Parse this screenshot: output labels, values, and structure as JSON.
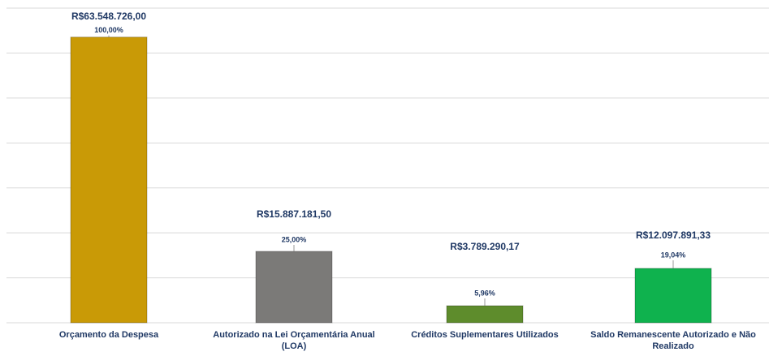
{
  "chart_data": {
    "type": "bar",
    "categories": [
      "Orçamento da Despesa",
      "Autorizado na Lei Orçamentária Anual (LOA)",
      "Créditos Suplementares Utilizados",
      "Saldo Remanescente Autorizado e Não Realizado"
    ],
    "values": [
      63548726.0,
      15887181.5,
      3789290.17,
      12097891.33
    ],
    "value_labels": [
      "R$63.548.726,00",
      "R$15.887.181,50",
      "R$3.789.290,17",
      "R$12.097.891,33"
    ],
    "percentage_labels": [
      "100,00%",
      "25,00%",
      "5,96%",
      "19,04%"
    ],
    "colors": [
      "#c99a06",
      "#7b7a78",
      "#5e8c2c",
      "#0fb24e"
    ],
    "ylim": [
      0,
      70000000
    ],
    "yticks": [
      0,
      10000000,
      20000000,
      30000000,
      40000000,
      50000000,
      60000000,
      70000000
    ],
    "grid": true
  }
}
